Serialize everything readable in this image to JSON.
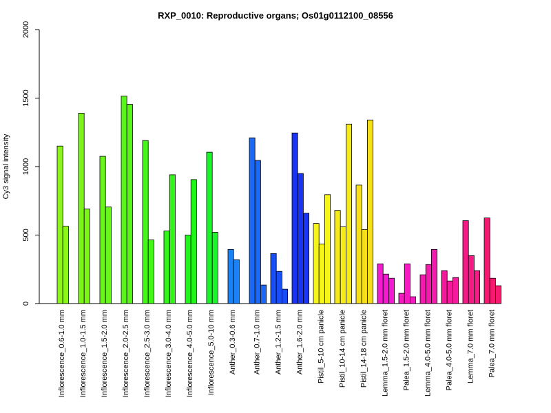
{
  "chart_data": {
    "type": "bar",
    "title": "RXP_0010: Reproductive organs; Os01g0112100_08556",
    "xlabel": "",
    "ylabel": "Cy3 signal intensity",
    "ylim": [
      0,
      2000
    ],
    "yticks": [
      "0",
      "500",
      "1000",
      "1500",
      "2000"
    ],
    "grid": false,
    "legend": "none",
    "categories": [
      "Inflorescence_0.6-1.0 mm",
      "Inflorescence_1.0-1.5 mm",
      "Inflorescence_1.5-2.0 mm",
      "Inflorescence_2.0-2.5 mm",
      "Inflorescence_2.5-3.0 mm",
      "Inflorescence_3.0-4.0 mm",
      "Inflorescence_4.0-5.0 mm",
      "Inflorescence_5.0-10 mm",
      "Anther_0.3-0.6 mm",
      "Anther_0.7-1.0 mm",
      "Anther_1.2-1.5 mm",
      "Anther_1.6-2.0 mm",
      "Pistil_5-10 cm panicle",
      "Pistil_10-14 cm panicle",
      "Pistil_14-18 cm panicle",
      "Lemma_1.5-2.0 mm floret",
      "Palea_1.5-2.0 mm floret",
      "Lemma_4.0-5.0 mm floret",
      "Palea_4.0-5.0 mm floret",
      "Lemma_7.0 mm floret",
      "Palea_7.0 mm floret"
    ],
    "groups": [
      {
        "values": [
          1150,
          565
        ],
        "color": "#8cf51a"
      },
      {
        "values": [
          1390,
          690
        ],
        "color": "#7cf51a"
      },
      {
        "values": [
          1075,
          705
        ],
        "color": "#6af51a"
      },
      {
        "values": [
          1515,
          1455
        ],
        "color": "#58f51a"
      },
      {
        "values": [
          1190,
          465
        ],
        "color": "#46f51a"
      },
      {
        "values": [
          530,
          940
        ],
        "color": "#34f51a"
      },
      {
        "values": [
          500,
          905
        ],
        "color": "#22f51a"
      },
      {
        "values": [
          1105,
          520
        ],
        "color": "#1af52c"
      },
      {
        "values": [
          395,
          320
        ],
        "color": "#1a82f5"
      },
      {
        "values": [
          1210,
          1045,
          135
        ],
        "color": "#1a68f5"
      },
      {
        "values": [
          365,
          235,
          105
        ],
        "color": "#1a4ef5"
      },
      {
        "values": [
          1245,
          950,
          660
        ],
        "color": "#1a34f5"
      },
      {
        "values": [
          585,
          435,
          795
        ],
        "color": "#f5f51a"
      },
      {
        "values": [
          680,
          560,
          1310
        ],
        "color": "#f5eb1a"
      },
      {
        "values": [
          865,
          540,
          1340
        ],
        "color": "#f5e01a"
      },
      {
        "values": [
          290,
          215,
          185
        ],
        "color": "#f51ad2"
      },
      {
        "values": [
          75,
          290,
          50
        ],
        "color": "#f51ac0"
      },
      {
        "values": [
          210,
          285,
          395
        ],
        "color": "#f51aae"
      },
      {
        "values": [
          240,
          165,
          190
        ],
        "color": "#f51a9c"
      },
      {
        "values": [
          605,
          350,
          240
        ],
        "color": "#f51a86"
      },
      {
        "values": [
          625,
          185,
          130
        ],
        "color": "#f51a70"
      }
    ]
  }
}
